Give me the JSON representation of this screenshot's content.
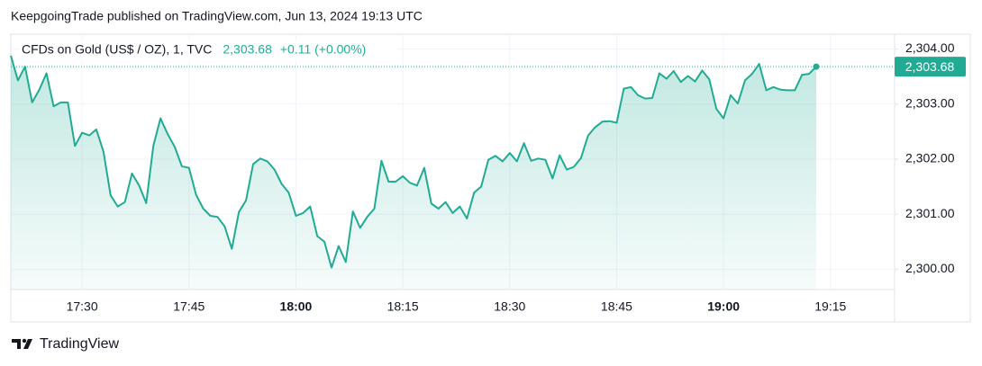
{
  "header": {
    "published": "KeepgoingTrade published on TradingView.com, Jun 13, 2024 19:13 UTC",
    "symbol": "CFDs on Gold (US$ / OZ), 1, TVC",
    "last": "2,303.68",
    "change": "+0.11 (+0.00%)"
  },
  "footer": {
    "brand": "TradingView"
  },
  "chart_data": {
    "type": "area",
    "color": "#22ab94",
    "grid": true,
    "x": [
      "17:20",
      "17:21",
      "17:22",
      "17:23",
      "17:24",
      "17:25",
      "17:26",
      "17:27",
      "17:28",
      "17:29",
      "17:30",
      "17:31",
      "17:32",
      "17:33",
      "17:34",
      "17:35",
      "17:36",
      "17:37",
      "17:38",
      "17:39",
      "17:40",
      "17:41",
      "17:42",
      "17:43",
      "17:44",
      "17:45",
      "17:46",
      "17:47",
      "17:48",
      "17:49",
      "17:50",
      "17:51",
      "17:52",
      "17:53",
      "17:54",
      "17:55",
      "17:56",
      "17:57",
      "17:58",
      "17:59",
      "18:00",
      "18:01",
      "18:02",
      "18:03",
      "18:04",
      "18:05",
      "18:06",
      "18:07",
      "18:08",
      "18:09",
      "18:10",
      "18:11",
      "18:12",
      "18:13",
      "18:14",
      "18:15",
      "18:16",
      "18:17",
      "18:18",
      "18:19",
      "18:20",
      "18:21",
      "18:22",
      "18:23",
      "18:24",
      "18:25",
      "18:26",
      "18:27",
      "18:28",
      "18:29",
      "18:30",
      "18:31",
      "18:32",
      "18:33",
      "18:34",
      "18:35",
      "18:36",
      "18:37",
      "18:38",
      "18:39",
      "18:40",
      "18:41",
      "18:42",
      "18:43",
      "18:44",
      "18:45",
      "18:46",
      "18:47",
      "18:48",
      "18:49",
      "18:50",
      "18:51",
      "18:52",
      "18:53",
      "18:54",
      "18:55",
      "18:56",
      "18:57",
      "18:58",
      "18:59",
      "19:00",
      "19:01",
      "19:02",
      "19:03",
      "19:04",
      "19:05",
      "19:06",
      "19:07",
      "19:08",
      "19:09",
      "19:10",
      "19:11",
      "19:12",
      "19:13"
    ],
    "values": [
      2303.88,
      2303.43,
      2303.68,
      2303.03,
      2303.26,
      2303.56,
      2302.96,
      2303.03,
      2303.03,
      2302.24,
      2302.48,
      2302.43,
      2302.54,
      2302.14,
      2301.34,
      2301.14,
      2301.22,
      2301.74,
      2301.52,
      2301.2,
      2302.24,
      2302.74,
      2302.46,
      2302.22,
      2301.87,
      2301.84,
      2301.35,
      2301.1,
      2300.97,
      2300.95,
      2300.78,
      2300.37,
      2301.04,
      2301.25,
      2301.91,
      2302.01,
      2301.96,
      2301.81,
      2301.55,
      2301.39,
      2300.97,
      2301.02,
      2301.14,
      2300.6,
      2300.5,
      2300.03,
      2300.42,
      2300.13,
      2301.05,
      2300.75,
      2300.95,
      2301.1,
      2301.97,
      2301.59,
      2301.59,
      2301.69,
      2301.57,
      2301.52,
      2301.84,
      2301.19,
      2301.1,
      2301.22,
      2301.02,
      2301.14,
      2300.92,
      2301.39,
      2301.5,
      2301.99,
      2302.06,
      2301.96,
      2302.11,
      2301.96,
      2302.29,
      2301.97,
      2302.01,
      2301.99,
      2301.65,
      2302.07,
      2301.81,
      2301.86,
      2302.02,
      2302.43,
      2302.58,
      2302.68,
      2302.69,
      2302.66,
      2303.28,
      2303.31,
      2303.16,
      2303.1,
      2303.11,
      2303.56,
      2303.46,
      2303.6,
      2303.4,
      2303.51,
      2303.41,
      2303.61,
      2303.45,
      2302.91,
      2302.74,
      2303.16,
      2303.01,
      2303.43,
      2303.55,
      2303.73,
      2303.25,
      2303.31,
      2303.26,
      2303.25,
      2303.25,
      2303.53,
      2303.55,
      2303.68
    ],
    "xlim": [
      "17:20",
      "19:24"
    ],
    "xticks": [
      "17:30",
      "17:45",
      "18:00",
      "18:15",
      "18:30",
      "18:45",
      "19:00",
      "19:15"
    ],
    "ylim": [
      2299.63,
      2304.27
    ],
    "yticks": [
      {
        "value": 2300,
        "label": "2,300.00"
      },
      {
        "value": 2301,
        "label": "2,301.00"
      },
      {
        "value": 2302,
        "label": "2,302.00"
      },
      {
        "value": 2303,
        "label": "2,303.00"
      },
      {
        "value": 2304,
        "label": "2,304.00"
      }
    ]
  }
}
